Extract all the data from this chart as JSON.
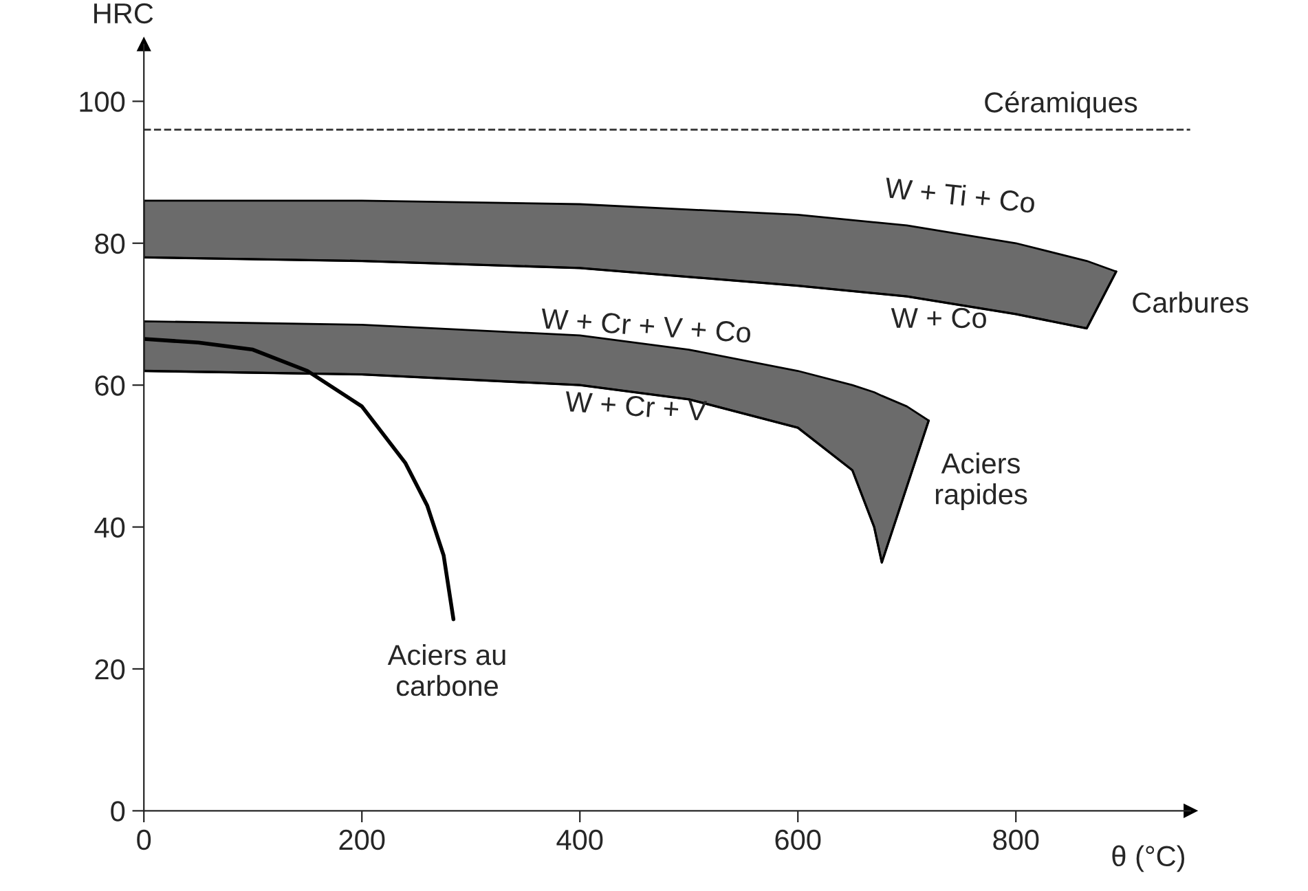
{
  "chart_data": {
    "type": "line",
    "xlabel": "θ (°C)",
    "ylabel": "HRC",
    "xlim": [
      0,
      960
    ],
    "ylim": [
      0,
      108
    ],
    "xticks": [
      0,
      200,
      400,
      600,
      800
    ],
    "yticks": [
      0,
      20,
      40,
      60,
      80,
      100
    ],
    "marker": "none",
    "line_style": "solid",
    "series": [
      {
        "type": "area",
        "color": "#6b6b6b",
        "x": [
          0,
          200,
          400,
          600,
          700,
          800,
          865,
          892
        ],
        "values": [
          86,
          86,
          85.5,
          84,
          82.5,
          80,
          77.5,
          76
        ]
      },
      {
        "color": "#000000",
        "x": [
          0,
          200,
          400,
          600,
          700,
          800,
          865,
          892
        ],
        "values": [
          78,
          77.5,
          76.5,
          74,
          72.5,
          70,
          68,
          76
        ]
      },
      {
        "type": "area",
        "color": "#6b6b6b",
        "x": [
          0,
          200,
          400,
          500,
          600,
          650,
          670,
          677,
          700,
          720
        ],
        "values": [
          69,
          68.5,
          67,
          65,
          62,
          60,
          59,
          58.5,
          57,
          55
        ]
      },
      {
        "color": "#000000",
        "x": [
          0,
          200,
          400,
          500,
          600,
          650,
          670,
          677,
          700,
          720
        ],
        "values": [
          62,
          61.5,
          60,
          58,
          54,
          48,
          40,
          35,
          45.7,
          55
        ]
      },
      {
        "color": "#000000",
        "x": [
          0,
          50,
          100,
          150,
          200,
          240,
          260,
          275,
          284
        ],
        "values": [
          66.5,
          66,
          65,
          62,
          57,
          49,
          43,
          36,
          27
        ]
      }
    ],
    "ref_lines": [
      {
        "axis": "y",
        "value": 96,
        "label": "Céramiques",
        "color": "#333333",
        "line_style": "dashed"
      }
    ],
    "annotations": [
      "W + Ti + Co",
      "W + Co",
      "Carbures",
      "W + Cr + V + Co",
      "W + Cr + V",
      "Aciers\nrapides",
      "Aciers au\ncarbone"
    ]
  }
}
